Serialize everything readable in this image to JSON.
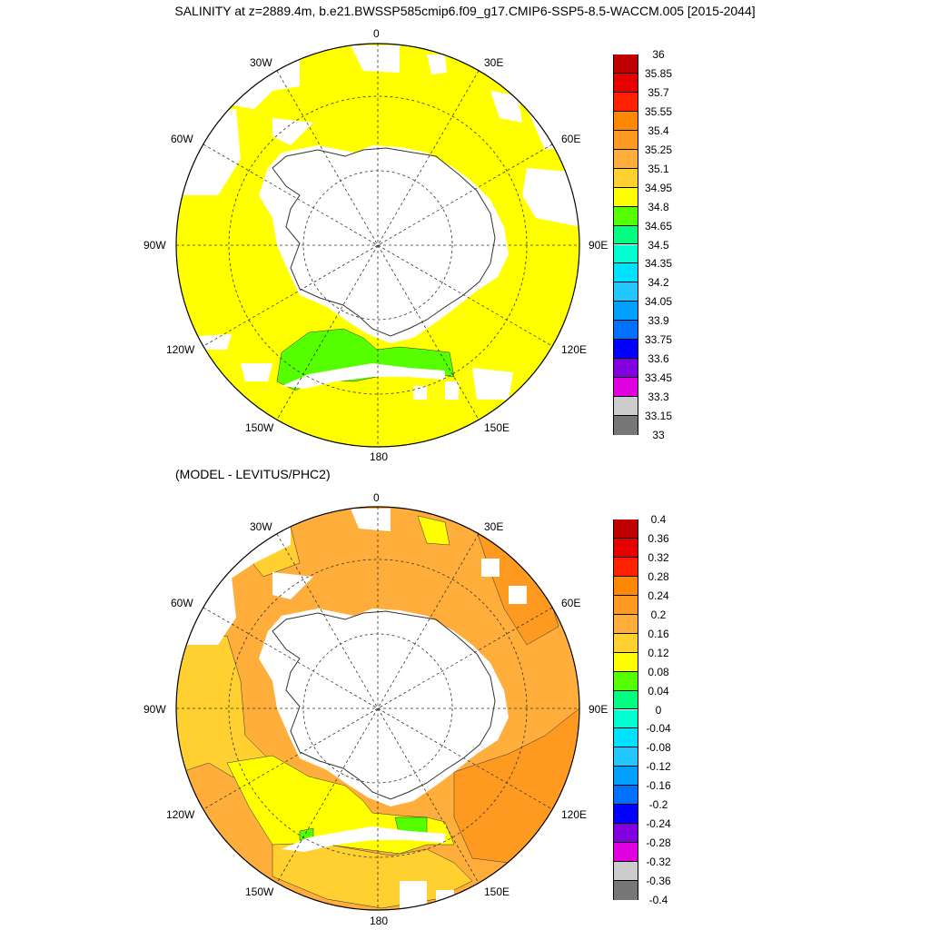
{
  "title": "SALINITY at z=2889.4m, b.e21.BWSSP585cmip6.f09_g17.CMIP6-SSP5-8.5-WACCM.005 [2015-2044]",
  "subtitle": "(MODEL - LEVITUS/PHC2)",
  "maps": [
    {
      "name": "salinity",
      "lon_labels": [
        "0",
        "30E",
        "60E",
        "90E",
        "120E",
        "150E",
        "180",
        "150W",
        "120W",
        "90W",
        "60W",
        "30W"
      ],
      "colorbar": {
        "labels": [
          "36",
          "35.85",
          "35.7",
          "35.55",
          "35.4",
          "35.25",
          "35.1",
          "34.95",
          "34.8",
          "34.65",
          "34.5",
          "34.35",
          "34.2",
          "34.05",
          "33.9",
          "33.75",
          "33.6",
          "33.45",
          "33.3",
          "33.15",
          "33"
        ],
        "colors": [
          "#c00000",
          "#e60000",
          "#ff2000",
          "#ff8800",
          "#ff9a20",
          "#ffae3c",
          "#ffd030",
          "#ffff00",
          "#55ff00",
          "#00ff80",
          "#00ffd0",
          "#00e0ff",
          "#20c8ff",
          "#00a0ff",
          "#0070ff",
          "#0000ff",
          "#8000e0",
          "#e000e0",
          "#cccccc",
          "#777777"
        ]
      },
      "field_color": "#ffff00",
      "anomaly_colors": [
        "#55ff00"
      ]
    },
    {
      "name": "difference",
      "lon_labels": [
        "0",
        "30E",
        "60E",
        "90E",
        "120E",
        "150E",
        "180",
        "150W",
        "120W",
        "90W",
        "60W",
        "30W"
      ],
      "colorbar": {
        "labels": [
          "0.4",
          "0.36",
          "0.32",
          "0.28",
          "0.24",
          "0.2",
          "0.16",
          "0.12",
          "0.08",
          "0.04",
          "0",
          "-0.04",
          "-0.08",
          "-0.12",
          "-0.16",
          "-0.2",
          "-0.24",
          "-0.28",
          "-0.32",
          "-0.36",
          "-0.4"
        ],
        "colors": [
          "#c00000",
          "#e60000",
          "#ff2000",
          "#ff8800",
          "#ff9a20",
          "#ffae3c",
          "#ffd030",
          "#ffff00",
          "#55ff00",
          "#00ff80",
          "#00ffd0",
          "#00e0ff",
          "#20c8ff",
          "#00a0ff",
          "#0070ff",
          "#0000ff",
          "#8000e0",
          "#e000e0",
          "#cccccc",
          "#777777"
        ]
      },
      "field_color": "#ffae3c",
      "anomaly_colors": [
        "#ffd030",
        "#ffff00",
        "#55ff00",
        "#ff9a20"
      ]
    }
  ]
}
